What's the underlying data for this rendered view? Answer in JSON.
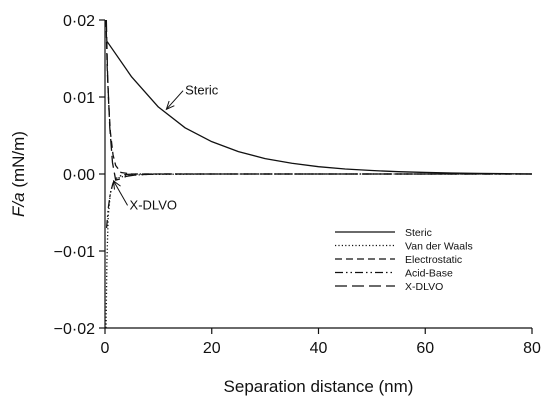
{
  "chart_data": {
    "type": "line",
    "title": "",
    "xlabel": "Separation distance (nm)",
    "ylabel_italic": "F/a",
    "ylabel_unit": " (mN/m)",
    "xlim": [
      0,
      80
    ],
    "ylim": [
      -0.02,
      0.02
    ],
    "x_ticks": [
      0,
      20,
      40,
      60,
      80
    ],
    "y_ticks": [
      0.02,
      0.01,
      0.0,
      -0.01,
      -0.02
    ],
    "x_tick_labels": [
      "0",
      "20",
      "40",
      "60",
      "80"
    ],
    "y_tick_labels": [
      "0·02",
      "0·01",
      "0·00",
      "−0·01",
      "−0·02"
    ],
    "grid": false,
    "legend_position": "bottom-right",
    "series": [
      {
        "name": "Steric",
        "style": "solid",
        "x": [
          0.4,
          5,
          10,
          15,
          20,
          25,
          30,
          35,
          40,
          45,
          50,
          55,
          60,
          65,
          70,
          75,
          80
        ],
        "y": [
          0.0172,
          0.0126,
          0.0087,
          0.006,
          0.0042,
          0.0029,
          0.002,
          0.0014,
          0.00095,
          0.00065,
          0.00045,
          0.0003,
          0.0002,
          0.00012,
          8e-05,
          4e-05,
          0.0
        ]
      },
      {
        "name": "Van der Waals",
        "style": "dotted",
        "x": [
          0.2,
          0.35,
          0.6,
          1.0,
          1.5,
          2.5,
          4,
          8,
          20,
          80
        ],
        "y": [
          -0.0205,
          -0.0115,
          -0.0055,
          -0.0025,
          -0.0012,
          -0.0005,
          -0.0002,
          -5e-05,
          0.0,
          0.0
        ]
      },
      {
        "name": "Electrostatic",
        "style": "dashed",
        "x": [
          0.2,
          0.4,
          0.7,
          1.0,
          1.5,
          2.0,
          3.0,
          5,
          10,
          80
        ],
        "y": [
          0.0205,
          0.014,
          0.009,
          0.0055,
          0.0025,
          0.0011,
          0.0002,
          0.0,
          0.0,
          0.0
        ]
      },
      {
        "name": "Acid-Base",
        "style": "dash-dot-dot",
        "x": [
          0.3,
          0.6,
          1.0,
          1.5,
          2.0,
          3.0,
          4,
          6,
          80
        ],
        "y": [
          -0.007,
          -0.0045,
          -0.0025,
          -0.0012,
          -0.0006,
          -0.0002,
          -5e-05,
          0.0,
          0.0
        ]
      },
      {
        "name": "X-DLVO",
        "style": "long-dash",
        "x": [
          0.25,
          0.5,
          0.9,
          1.4,
          2.0,
          3.0,
          4.0,
          6,
          10,
          80
        ],
        "y": [
          0.0205,
          0.0125,
          0.006,
          0.0015,
          -0.0008,
          -0.0006,
          -0.0003,
          -0.0001,
          0.0,
          0.0
        ]
      }
    ],
    "annotations": [
      {
        "text": "Steric",
        "x": 15,
        "y": 0.0103,
        "arrow_to": [
          11.5,
          0.0084
        ]
      },
      {
        "text": "X-DLVO",
        "x": 4.6,
        "y": -0.0046,
        "arrow_to": [
          1.6,
          -0.0009
        ]
      }
    ]
  }
}
